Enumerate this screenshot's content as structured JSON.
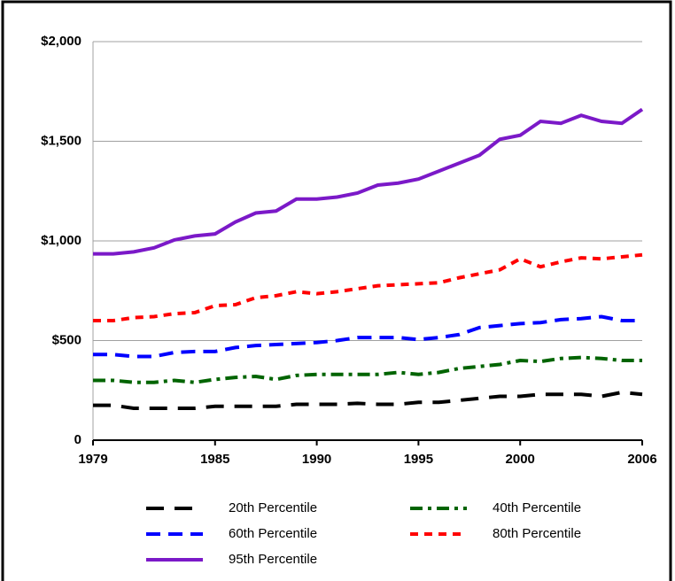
{
  "chart_data": {
    "type": "line",
    "x": [
      1979,
      1980,
      1981,
      1982,
      1983,
      1984,
      1985,
      1986,
      1987,
      1988,
      1989,
      1990,
      1991,
      1992,
      1993,
      1994,
      1995,
      1996,
      1997,
      1998,
      1999,
      2000,
      2001,
      2002,
      2003,
      2004,
      2005,
      2006
    ],
    "xlim": [
      1979,
      2006
    ],
    "xticks": [
      1979,
      1985,
      1990,
      1995,
      2000,
      2006
    ],
    "ylim": [
      0,
      2000
    ],
    "yticks": [
      0,
      {
        "value": 500,
        "label": "$500"
      },
      {
        "value": 1000,
        "label": "$1,000"
      },
      {
        "value": 1500,
        "label": "$1,500"
      },
      {
        "value": 2000,
        "label": "$2,000"
      }
    ],
    "grid": true,
    "series": [
      {
        "name": "20th Percentile",
        "color": "#000000",
        "style": "long-dash",
        "values": [
          175,
          175,
          160,
          160,
          160,
          160,
          170,
          170,
          170,
          170,
          180,
          180,
          180,
          185,
          180,
          180,
          190,
          190,
          200,
          210,
          220,
          220,
          230,
          230,
          230,
          220,
          240,
          230
        ]
      },
      {
        "name": "40th Percentile",
        "color": "#006400",
        "style": "dash-dot",
        "values": [
          300,
          300,
          290,
          290,
          300,
          290,
          305,
          315,
          320,
          305,
          325,
          330,
          330,
          330,
          330,
          340,
          330,
          340,
          360,
          370,
          380,
          400,
          395,
          410,
          415,
          410,
          400,
          400
        ]
      },
      {
        "name": "60th Percentile",
        "color": "#0000ff",
        "style": "dash",
        "values": [
          430,
          430,
          420,
          420,
          440,
          445,
          445,
          465,
          475,
          480,
          485,
          490,
          500,
          515,
          515,
          515,
          505,
          515,
          530,
          565,
          575,
          585,
          590,
          605,
          610,
          620,
          600,
          600
        ]
      },
      {
        "name": "80th Percentile",
        "color": "#ff0000",
        "style": "short-dash",
        "values": [
          600,
          600,
          615,
          620,
          635,
          640,
          675,
          680,
          715,
          725,
          745,
          735,
          745,
          760,
          775,
          780,
          785,
          790,
          815,
          835,
          855,
          910,
          870,
          895,
          915,
          910,
          920,
          930
        ]
      },
      {
        "name": "95th Percentile",
        "color": "#7b19c8",
        "style": "solid",
        "values": [
          935,
          935,
          945,
          965,
          1005,
          1025,
          1035,
          1095,
          1140,
          1150,
          1210,
          1210,
          1220,
          1240,
          1280,
          1290,
          1310,
          1350,
          1390,
          1430,
          1510,
          1530,
          1600,
          1590,
          1630,
          1600,
          1590,
          1660
        ]
      }
    ]
  }
}
